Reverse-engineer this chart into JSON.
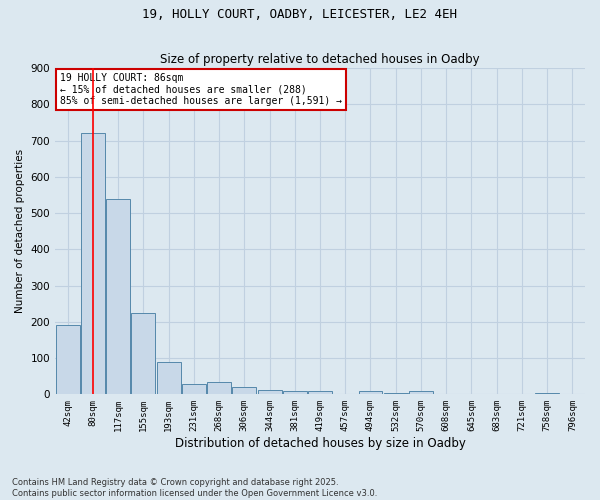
{
  "title_line1": "19, HOLLY COURT, OADBY, LEICESTER, LE2 4EH",
  "title_line2": "Size of property relative to detached houses in Oadby",
  "xlabel": "Distribution of detached houses by size in Oadby",
  "ylabel": "Number of detached properties",
  "categories": [
    "42sqm",
    "80sqm",
    "117sqm",
    "155sqm",
    "193sqm",
    "231sqm",
    "268sqm",
    "306sqm",
    "344sqm",
    "381sqm",
    "419sqm",
    "457sqm",
    "494sqm",
    "532sqm",
    "570sqm",
    "608sqm",
    "645sqm",
    "683sqm",
    "721sqm",
    "758sqm",
    "796sqm"
  ],
  "values": [
    190,
    720,
    540,
    225,
    90,
    28,
    33,
    20,
    13,
    10,
    10,
    0,
    8,
    5,
    8,
    0,
    0,
    0,
    0,
    4,
    0
  ],
  "bar_color": "#c8d8e8",
  "bar_edge_color": "#5588aa",
  "grid_color": "#c0d0e0",
  "bg_color": "#dce8f0",
  "red_line_x": 1,
  "annotation_text": "19 HOLLY COURT: 86sqm\n← 15% of detached houses are smaller (288)\n85% of semi-detached houses are larger (1,591) →",
  "annotation_box_color": "#ffffff",
  "annotation_box_edge": "#cc0000",
  "footnote": "Contains HM Land Registry data © Crown copyright and database right 2025.\nContains public sector information licensed under the Open Government Licence v3.0.",
  "ylim": [
    0,
    900
  ],
  "yticks": [
    0,
    100,
    200,
    300,
    400,
    500,
    600,
    700,
    800,
    900
  ]
}
